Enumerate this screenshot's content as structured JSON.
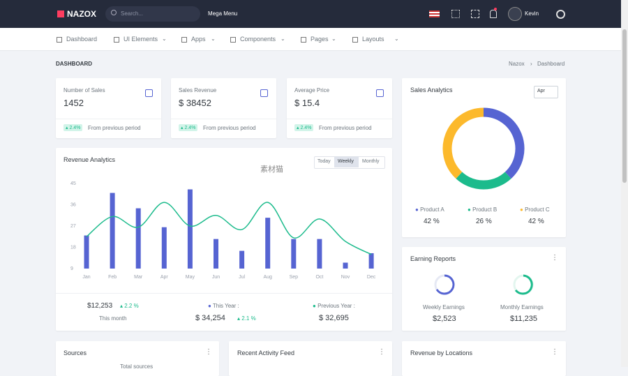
{
  "navbar": {
    "brand": "NAZOX",
    "search_placeholder": "Search...",
    "mega_menu": "Mega Menu",
    "user": "Kevin"
  },
  "menu": [
    "Dashboard",
    "UI Elements",
    "Apps",
    "Components",
    "Pages",
    "Layouts"
  ],
  "page": {
    "title": "DASHBOARD",
    "breadcrumb": [
      "Nazox",
      "Dashboard"
    ],
    "watermark": "素材猫"
  },
  "stats": [
    {
      "label": "Number of Sales",
      "value": "1452",
      "change": "2.4%",
      "note": "From previous period"
    },
    {
      "label": "Sales Revenue",
      "value": "$ 38452",
      "change": "2.4%",
      "note": "From previous period"
    },
    {
      "label": "Average Price",
      "value": "$ 15.4",
      "change": "2.4%",
      "note": "From previous period"
    }
  ],
  "revenue": {
    "title": "Revenue Analytics",
    "tabs": [
      "Today",
      "Weekly",
      "Monthly"
    ],
    "chart": {
      "type": "bar",
      "categories": [
        "Jan",
        "Feb",
        "Mar",
        "Apr",
        "May",
        "Jun",
        "Jul",
        "Aug",
        "Sep",
        "Oct",
        "Nov",
        "Dec"
      ],
      "series": [
        {
          "type": "bar",
          "color": "#5664d2",
          "values": [
            23,
            41,
            34.5,
            26.5,
            42.5,
            21.5,
            16.5,
            30.5,
            21.5,
            21.5,
            11.5,
            15.5
          ]
        },
        {
          "type": "line",
          "color": "#1cbb8c",
          "values": [
            22.5,
            31,
            26.5,
            37,
            27,
            31.5,
            25.5,
            37,
            22,
            30,
            20.5,
            15
          ]
        }
      ],
      "ylim": [
        9,
        45
      ],
      "yticks": [
        9,
        18,
        27,
        36,
        45
      ]
    },
    "summary": {
      "amount": "$12,253",
      "change": "2.2 %",
      "period": "This month",
      "this_year_label": "This Year :",
      "this_year_value": "$ 34,254",
      "this_year_change": "2.1 %",
      "previous_year_label": "Previous Year :",
      "previous_year_value": "$ 32,695"
    }
  },
  "sales_analytics": {
    "title": "Sales Analytics",
    "select": "Apr",
    "chart": {
      "type": "pie",
      "categories": [
        "Product A",
        "Product B",
        "Product C"
      ],
      "values": [
        42,
        26,
        42
      ],
      "value_labels": [
        "42 %",
        "26 %",
        "42 %"
      ],
      "colors": [
        "#5664d2",
        "#1cbb8c",
        "#fcb92c"
      ]
    }
  },
  "earning_reports": {
    "title": "Earning Reports",
    "items": [
      {
        "label": "Weekly Earnings",
        "value": "$2,523"
      },
      {
        "label": "Monthly Earnings",
        "value": "$11,235"
      }
    ]
  },
  "bottom_cards": [
    {
      "title": "Sources",
      "subtitle": "Total sources"
    },
    {
      "title": "Recent Activity Feed"
    },
    {
      "title": "Revenue by Locations"
    }
  ]
}
